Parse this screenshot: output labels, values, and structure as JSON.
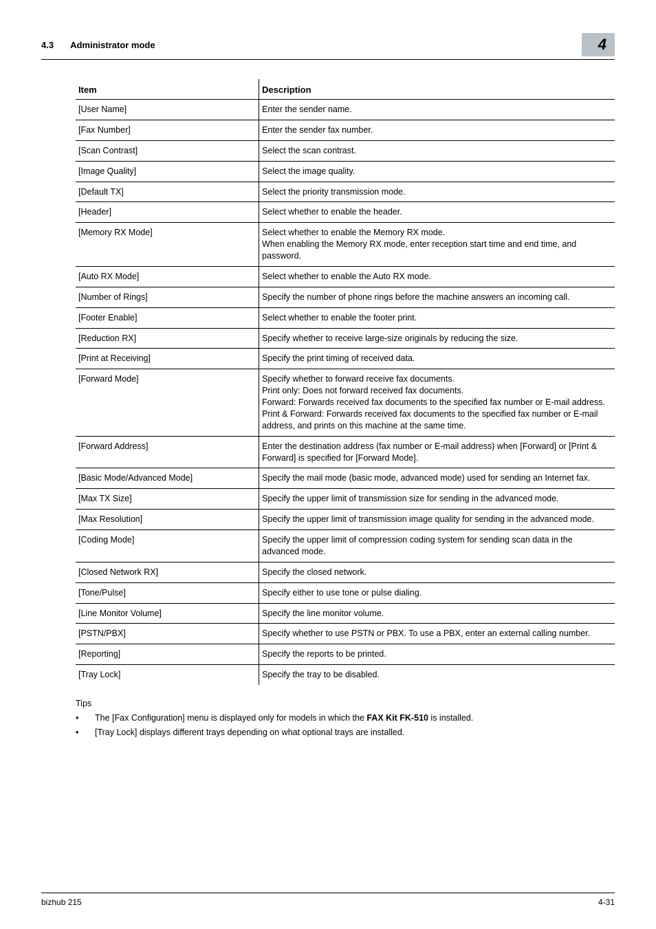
{
  "header": {
    "section_num": "4.3",
    "section_title": "Administrator mode",
    "badge": "4"
  },
  "table": {
    "col_item": "Item",
    "col_desc": "Description",
    "rows": [
      {
        "item": "[User Name]",
        "desc": "Enter the sender name."
      },
      {
        "item": "[Fax Number]",
        "desc": "Enter the sender fax number."
      },
      {
        "item": "[Scan Contrast]",
        "desc": "Select the scan contrast."
      },
      {
        "item": "[Image Quality]",
        "desc": "Select the image quality."
      },
      {
        "item": "[Default TX]",
        "desc": "Select the priority transmission mode."
      },
      {
        "item": "[Header]",
        "desc": "Select whether to enable the header."
      },
      {
        "item": "[Memory RX Mode]",
        "desc": "Select whether to enable the Memory RX mode.\nWhen enabling the Memory RX mode, enter reception start time and end time, and password."
      },
      {
        "item": "[Auto RX Mode]",
        "desc": "Select whether to enable the Auto RX mode."
      },
      {
        "item": "[Number of Rings]",
        "desc": "Specify the number of phone rings before the machine answers an incoming call."
      },
      {
        "item": "[Footer Enable]",
        "desc": "Select whether to enable the footer print."
      },
      {
        "item": "[Reduction RX]",
        "desc": "Specify whether to receive large-size originals by reducing the size."
      },
      {
        "item": "[Print at Receiving]",
        "desc": "Specify the print timing of received data."
      },
      {
        "item": "[Forward Mode]",
        "desc": "Specify whether to forward receive fax documents.\nPrint only: Does not forward received fax documents.\nForward: Forwards received fax documents to the specified fax number or E-mail address.\nPrint & Forward: Forwards received fax documents to the specified fax number or E-mail address, and prints on this machine at the same time."
      },
      {
        "item": "[Forward Address]",
        "desc": "Enter the destination address (fax number or E-mail address) when [Forward] or [Print & Forward] is specified for [Forward Mode]."
      },
      {
        "item": "[Basic Mode/Advanced Mode]",
        "desc": "Specify the mail mode (basic mode, advanced mode) used for sending an Internet fax."
      },
      {
        "item": "[Max TX Size]",
        "desc": "Specify the upper limit of transmission size for sending in the advanced mode."
      },
      {
        "item": "[Max Resolution]",
        "desc": "Specify the upper limit of transmission image quality for sending in the advanced mode."
      },
      {
        "item": "[Coding Mode]",
        "desc": "Specify the upper limit of compression coding system for sending scan data in the advanced mode."
      },
      {
        "item": "[Closed Network RX]",
        "desc": "Specify the closed network."
      },
      {
        "item": "[Tone/Pulse]",
        "desc": "Specify either to use tone or pulse dialing."
      },
      {
        "item": "[Line Monitor Volume]",
        "desc": "Specify the line monitor volume."
      },
      {
        "item": "[PSTN/PBX]",
        "desc": "Specify whether to use PSTN or PBX. To use a PBX, enter an external calling number."
      },
      {
        "item": "[Reporting]",
        "desc": "Specify the reports to be printed."
      },
      {
        "item": "[Tray Lock]",
        "desc": "Specify the tray to be disabled."
      }
    ]
  },
  "tips": {
    "heading": "Tips",
    "items": [
      {
        "pre": "The [Fax Configuration] menu is displayed only for models in which the ",
        "bold": "FAX Kit FK-510",
        "post": " is installed."
      },
      {
        "pre": "[Tray Lock] displays different trays depending on what optional trays are installed.",
        "bold": "",
        "post": ""
      }
    ]
  },
  "footer": {
    "left": "bizhub 215",
    "right": "4-31"
  }
}
